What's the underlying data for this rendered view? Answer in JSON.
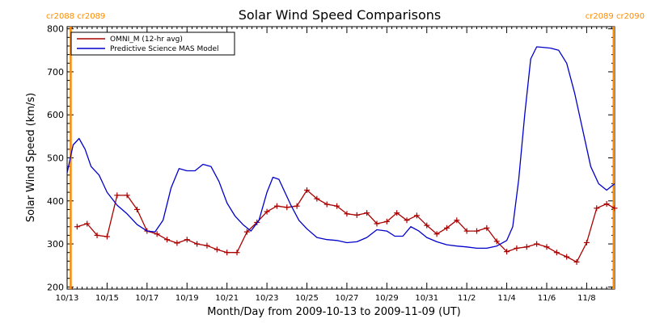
{
  "chart_data": {
    "type": "line",
    "title": "Solar Wind Speed Comparisons",
    "xlabel": "Month/Day from 2009-10-13 to 2009-11-09 (UT)",
    "ylabel": "Solar Wind Speed (km/s)",
    "xlim": [
      0,
      27.4
    ],
    "ylim": [
      195,
      805
    ],
    "x_unit": "days since 2009-10-13",
    "x_ticks": [
      {
        "x": 0,
        "label": "10/13"
      },
      {
        "x": 2,
        "label": "10/15"
      },
      {
        "x": 4,
        "label": "10/17"
      },
      {
        "x": 6,
        "label": "10/19"
      },
      {
        "x": 8,
        "label": "10/21"
      },
      {
        "x": 10,
        "label": "10/23"
      },
      {
        "x": 12,
        "label": "10/25"
      },
      {
        "x": 14,
        "label": "10/27"
      },
      {
        "x": 16,
        "label": "10/29"
      },
      {
        "x": 18,
        "label": "10/31"
      },
      {
        "x": 20,
        "label": "11/2"
      },
      {
        "x": 22,
        "label": "11/4"
      },
      {
        "x": 24,
        "label": "11/6"
      },
      {
        "x": 26,
        "label": "11/8"
      }
    ],
    "y_ticks": [
      200,
      300,
      400,
      500,
      600,
      700,
      800
    ],
    "legend_position": "top-left",
    "carrington_markers": [
      {
        "x": 0.18,
        "label_top_left": "cr2088 cr2089",
        "side": "left",
        "color": "#ff8c00"
      },
      {
        "x": 27.35,
        "label_top_right": "cr2089 cr2090",
        "side": "right",
        "color": "#ff8c00"
      }
    ],
    "series": [
      {
        "name": "OMNI_M (12-hr avg)",
        "color": "#aa0000",
        "marker": "plus",
        "x": [
          0.5,
          1.0,
          1.5,
          2.0,
          2.5,
          3.0,
          3.5,
          4.0,
          4.5,
          5.0,
          5.5,
          6.0,
          6.5,
          7.0,
          7.5,
          8.0,
          8.5,
          9.0,
          9.5,
          10.0,
          10.5,
          11.0,
          11.5,
          12.0,
          12.5,
          13.0,
          13.5,
          14.0,
          14.5,
          15.0,
          15.5,
          16.0,
          16.5,
          17.0,
          17.5,
          18.0,
          18.5,
          19.0,
          19.5,
          20.0,
          20.5,
          21.0,
          21.5,
          22.0,
          22.5,
          23.0,
          23.5,
          24.0,
          24.5,
          25.0,
          25.5,
          26.0,
          26.5,
          27.0,
          27.4
        ],
        "y": [
          340,
          347,
          320,
          317,
          413,
          413,
          380,
          330,
          323,
          310,
          302,
          310,
          300,
          296,
          287,
          280,
          280,
          328,
          350,
          375,
          388,
          385,
          388,
          425,
          405,
          392,
          388,
          370,
          367,
          372,
          347,
          352,
          372,
          355,
          366,
          343,
          323,
          337,
          355,
          330,
          330,
          337,
          306,
          282,
          290,
          293,
          300,
          293,
          280,
          270,
          258,
          303,
          383,
          393,
          383
        ]
      },
      {
        "name": "Predictive Science MAS Model",
        "color": "#0000cc",
        "marker": "none",
        "x": [
          0.0,
          0.3,
          0.6,
          0.9,
          1.2,
          1.6,
          2.0,
          2.5,
          3.0,
          3.5,
          4.0,
          4.4,
          4.8,
          5.2,
          5.6,
          6.0,
          6.4,
          6.8,
          7.2,
          7.6,
          8.0,
          8.4,
          8.8,
          9.2,
          9.6,
          10.0,
          10.3,
          10.6,
          10.9,
          11.2,
          11.6,
          12.0,
          12.5,
          13.0,
          13.5,
          14.0,
          14.5,
          15.0,
          15.5,
          16.0,
          16.4,
          16.8,
          17.2,
          17.6,
          18.0,
          18.5,
          19.0,
          19.5,
          20.0,
          20.5,
          21.0,
          21.5,
          22.0,
          22.3,
          22.6,
          22.9,
          23.2,
          23.5,
          23.8,
          24.2,
          24.6,
          25.0,
          25.4,
          25.8,
          26.2,
          26.6,
          27.0,
          27.4
        ],
        "y": [
          465,
          530,
          545,
          520,
          480,
          460,
          420,
          390,
          370,
          345,
          330,
          328,
          355,
          430,
          475,
          470,
          470,
          485,
          480,
          445,
          395,
          365,
          345,
          330,
          355,
          420,
          455,
          450,
          420,
          390,
          355,
          335,
          315,
          310,
          308,
          303,
          305,
          315,
          333,
          330,
          318,
          318,
          340,
          330,
          315,
          305,
          298,
          295,
          293,
          290,
          290,
          295,
          308,
          340,
          450,
          600,
          730,
          758,
          757,
          755,
          750,
          720,
          650,
          565,
          480,
          440,
          425,
          440
        ]
      }
    ]
  }
}
